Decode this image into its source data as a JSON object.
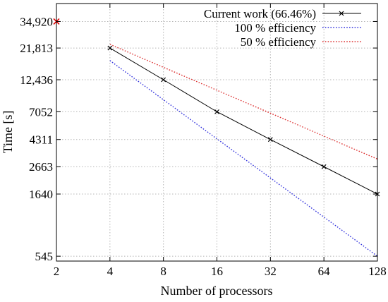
{
  "chart_data": {
    "type": "line",
    "xlabel": "Number of processors",
    "ylabel": "Time [s]",
    "x_scale": "log2",
    "y_scale": "log",
    "xlim": [
      2,
      128
    ],
    "ylim": [
      500,
      48000
    ],
    "grid": true,
    "legend_position": "top-right",
    "x_ticks": [
      2,
      4,
      8,
      16,
      32,
      64,
      128
    ],
    "x_tick_labels": [
      "2",
      "4",
      "8",
      "16",
      "32",
      "64",
      "128"
    ],
    "y_ticks": [
      545,
      1640,
      2663,
      4311,
      7052,
      12436,
      21813,
      34920
    ],
    "y_tick_labels": [
      "545",
      "1640",
      "2663",
      "4311",
      "7052",
      "12,436",
      "21,813",
      "34,920"
    ],
    "series": [
      {
        "name": "Current work (66.46%)",
        "color": "#000000",
        "style": "solid",
        "marker": "x",
        "x": [
          4,
          8,
          16,
          32,
          64,
          128
        ],
        "y": [
          21813,
          12436,
          7052,
          4311,
          2663,
          1640
        ]
      },
      {
        "name": "100 % efficiency",
        "color": "#3333dd",
        "style": "dotted",
        "marker": "none",
        "x": [
          4,
          128
        ],
        "y": [
          17460,
          545
        ]
      },
      {
        "name": "50 % efficiency",
        "color": "#dd3333",
        "style": "dotted",
        "marker": "none",
        "x": [
          4,
          128
        ],
        "y": [
          23280,
          3050
        ]
      }
    ],
    "reference_point": {
      "x": 2,
      "y": 34920,
      "color": "#dd0000",
      "marker": "x"
    }
  }
}
